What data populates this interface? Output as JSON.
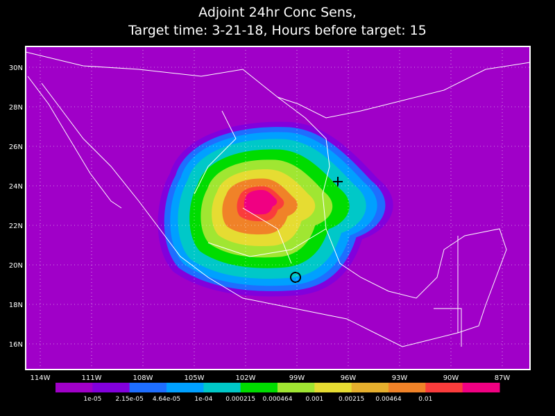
{
  "title": {
    "line1": "Adjoint 24hr Conc Sens,",
    "line2": "Target time: 3-21-18, Hours before target: 15"
  },
  "lat_labels": [
    "30N",
    "28N",
    "26N",
    "24N",
    "22N",
    "20N",
    "18N",
    "16N"
  ],
  "lon_labels": [
    "114W",
    "111W",
    "108W",
    "105W",
    "102W",
    "99W",
    "96W",
    "93W",
    "90W",
    "87W"
  ],
  "colorbar": {
    "labels": [
      "1e-05",
      "2.15e-05",
      "4.64e-05",
      "1e-04",
      "0.000215",
      "0.000464",
      "0.001",
      "0.00215",
      "0.00464",
      "0.01"
    ],
    "colors": [
      "#a000c8",
      "#8200dc",
      "#1e6eff",
      "#00a0ff",
      "#00c8c8",
      "#00dc00",
      "#a0e632",
      "#e6dc32",
      "#e6af2d",
      "#f08228",
      "#fa3c3c",
      "#f00082"
    ]
  }
}
